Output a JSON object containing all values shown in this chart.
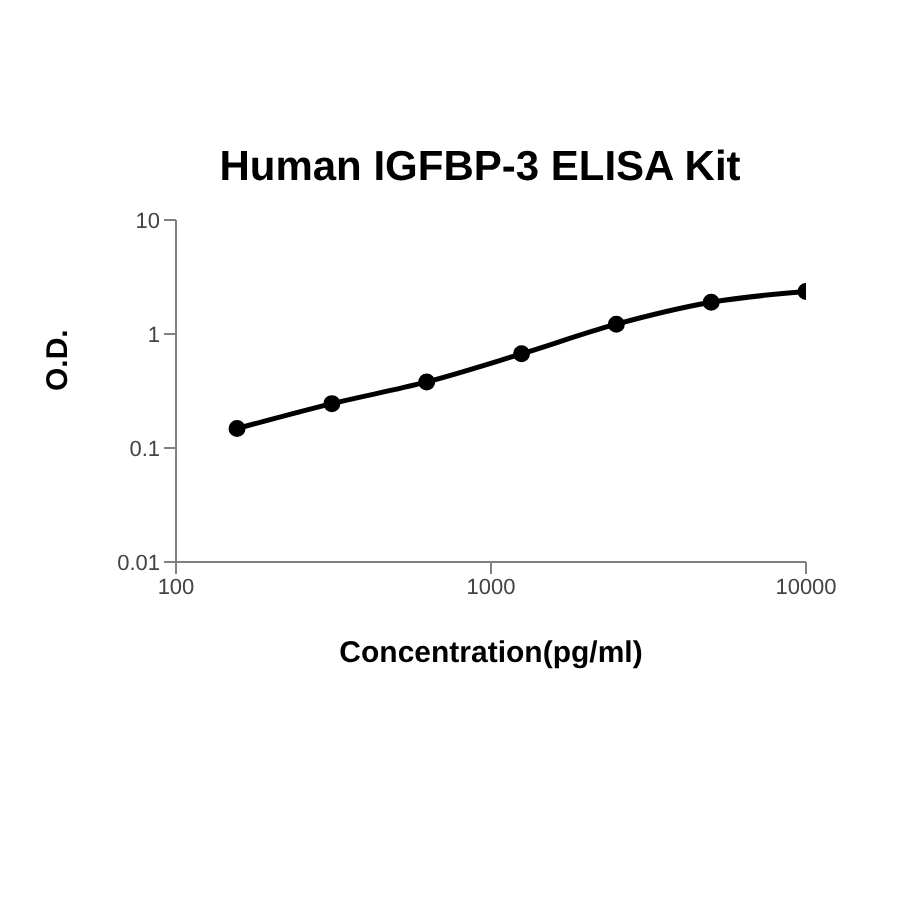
{
  "chart_data": {
    "type": "line",
    "title": "Human IGFBP-3 ELISA Kit",
    "xlabel": "Concentration(pg/ml)",
    "ylabel": "O.D.",
    "x": [
      156.25,
      312.5,
      625,
      1250,
      2500,
      5000,
      10000
    ],
    "series": [
      {
        "color": "#000000",
        "values": [
          0.148,
          0.245,
          0.38,
          0.67,
          1.22,
          1.9,
          2.36
        ]
      }
    ],
    "log": "xy",
    "xlim": [
      100,
      10000
    ],
    "xticks": [
      100,
      1000,
      10000
    ],
    "ylim": [
      0.01,
      10
    ],
    "yticks": [
      0.01,
      0.1,
      1,
      10
    ],
    "grid": false,
    "legend": false,
    "marker": "circle",
    "line_style": "solid"
  }
}
